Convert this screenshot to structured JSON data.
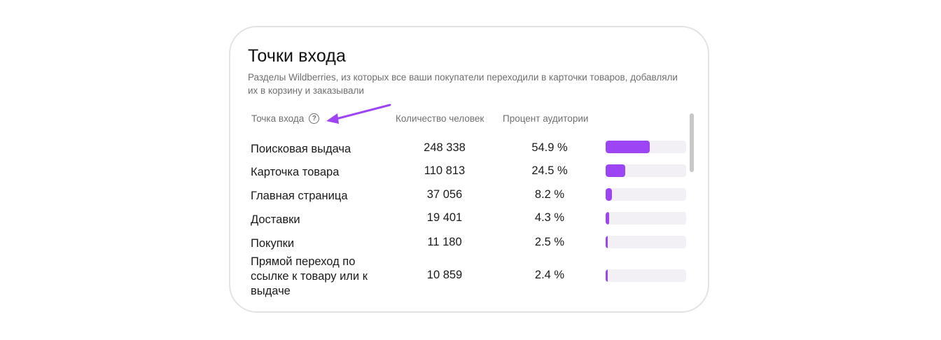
{
  "widget": {
    "title": "Точки входа",
    "subtitle": "Разделы Wildberries, из которых все ваши покупатели переходили в карточки товаров, добавляли их в корзину и заказывали",
    "columns": {
      "entry": "Точка входа",
      "count": "Количество человек",
      "percent": "Процент аудитории"
    },
    "help_icon_glyph": "?",
    "accent_color": "#9d45f5",
    "arrow_color": "#9d45f5",
    "rows": [
      {
        "name": "Поисковая выдача",
        "count": "248 338",
        "percent": "54.9 %",
        "share": 54.9
      },
      {
        "name": "Карточка товара",
        "count": "110 813",
        "percent": "24.5 %",
        "share": 24.5
      },
      {
        "name": "Главная страница",
        "count": "37 056",
        "percent": "8.2 %",
        "share": 8.2
      },
      {
        "name": "Доставки",
        "count": "19 401",
        "percent": "4.3 %",
        "share": 4.3
      },
      {
        "name": "Покупки",
        "count": "11 180",
        "percent": "2.5 %",
        "share": 2.5
      },
      {
        "name": "Прямой переход по ссылке к товару или к выдаче",
        "count": "10 859",
        "percent": "2.4 %",
        "share": 2.4
      }
    ]
  }
}
